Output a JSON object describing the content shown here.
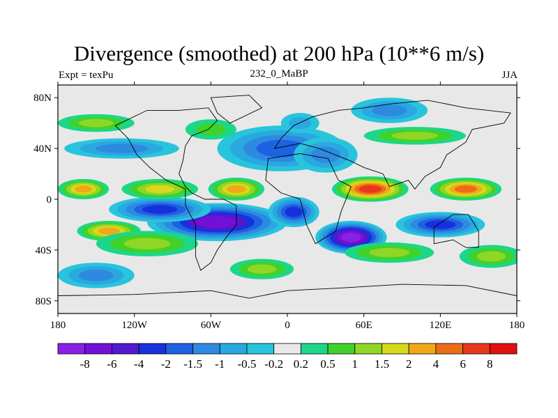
{
  "chart_data": {
    "type": "heatmap",
    "title": "Divergence (smoothed) at 200 hPa (10**6 m/s)",
    "subtitle_left": "Expt = texPu",
    "subtitle_center": "232_0_MaBP",
    "subtitle_right": "JJA",
    "x_range": [
      -180,
      180
    ],
    "y_range": [
      -90,
      90
    ],
    "x_ticks": [
      {
        "value": -180,
        "label": "180"
      },
      {
        "value": -120,
        "label": "120W"
      },
      {
        "value": -60,
        "label": "60W"
      },
      {
        "value": 0,
        "label": "0"
      },
      {
        "value": 60,
        "label": "60E"
      },
      {
        "value": 120,
        "label": "120E"
      },
      {
        "value": 180,
        "label": "180"
      }
    ],
    "y_ticks": [
      {
        "value": 80,
        "label": "80N"
      },
      {
        "value": 40,
        "label": "40N"
      },
      {
        "value": 0,
        "label": "0"
      },
      {
        "value": -40,
        "label": "40S"
      },
      {
        "value": -80,
        "label": "80S"
      }
    ],
    "colorbar": {
      "colors": [
        "#8a1fe6",
        "#7310d8",
        "#5418cc",
        "#1830dc",
        "#1c62e2",
        "#2d8ae0",
        "#2aa8e0",
        "#28c4dc",
        "#e8e8e8",
        "#1cd68a",
        "#40d22a",
        "#90d626",
        "#d8d81c",
        "#f0a81a",
        "#ec6c18",
        "#e8381a",
        "#e01010"
      ],
      "labels": [
        "-8",
        "-6",
        "-4",
        "-2",
        "-1.5",
        "-1",
        "-0.5",
        "-0.2",
        "0.2",
        "0.5",
        "1",
        "1.5",
        "2",
        "4",
        "6",
        "8"
      ]
    },
    "fields": [
      {
        "lon": 50,
        "lat": -30,
        "value": -9,
        "rx": 28,
        "ry": 13
      },
      {
        "lon": -55,
        "lat": -18,
        "value": -6.5,
        "rx": 55,
        "ry": 15
      },
      {
        "lon": -100,
        "lat": -8,
        "value": -3,
        "rx": 40,
        "ry": 10
      },
      {
        "lon": 5,
        "lat": -10,
        "value": -3,
        "rx": 20,
        "ry": 12
      },
      {
        "lon": 120,
        "lat": -20,
        "value": -3,
        "rx": 35,
        "ry": 10
      },
      {
        "lon": -5,
        "lat": 40,
        "value": -1.5,
        "rx": 50,
        "ry": 18
      },
      {
        "lon": 30,
        "lat": 35,
        "value": -1.2,
        "rx": 25,
        "ry": 14
      },
      {
        "lon": 80,
        "lat": 70,
        "value": -1,
        "rx": 30,
        "ry": 10
      },
      {
        "lon": -150,
        "lat": -60,
        "value": -1,
        "rx": 30,
        "ry": 10
      },
      {
        "lon": -130,
        "lat": 40,
        "value": -1,
        "rx": 45,
        "ry": 8
      },
      {
        "lon": 10,
        "lat": 60,
        "value": -0.8,
        "rx": 15,
        "ry": 8
      },
      {
        "lon": 65,
        "lat": 8,
        "value": 6,
        "rx": 30,
        "ry": 10
      },
      {
        "lon": 140,
        "lat": 8,
        "value": 4.5,
        "rx": 28,
        "ry": 9
      },
      {
        "lon": -40,
        "lat": 8,
        "value": 2.5,
        "rx": 22,
        "ry": 9
      },
      {
        "lon": -160,
        "lat": 8,
        "value": 2.5,
        "rx": 20,
        "ry": 8
      },
      {
        "lon": -100,
        "lat": 8,
        "value": 1.5,
        "rx": 30,
        "ry": 8
      },
      {
        "lon": -140,
        "lat": -25,
        "value": 2.5,
        "rx": 25,
        "ry": 8
      },
      {
        "lon": -110,
        "lat": -35,
        "value": 1.2,
        "rx": 40,
        "ry": 10
      },
      {
        "lon": 80,
        "lat": -42,
        "value": 1.4,
        "rx": 35,
        "ry": 8
      },
      {
        "lon": -150,
        "lat": 60,
        "value": 1,
        "rx": 30,
        "ry": 7
      },
      {
        "lon": 100,
        "lat": 50,
        "value": 1,
        "rx": 40,
        "ry": 7
      },
      {
        "lon": -60,
        "lat": 55,
        "value": 0.8,
        "rx": 20,
        "ry": 8
      },
      {
        "lon": -20,
        "lat": -55,
        "value": 1.2,
        "rx": 25,
        "ry": 8
      },
      {
        "lon": 160,
        "lat": -45,
        "value": 1.2,
        "rx": 25,
        "ry": 9
      }
    ]
  }
}
